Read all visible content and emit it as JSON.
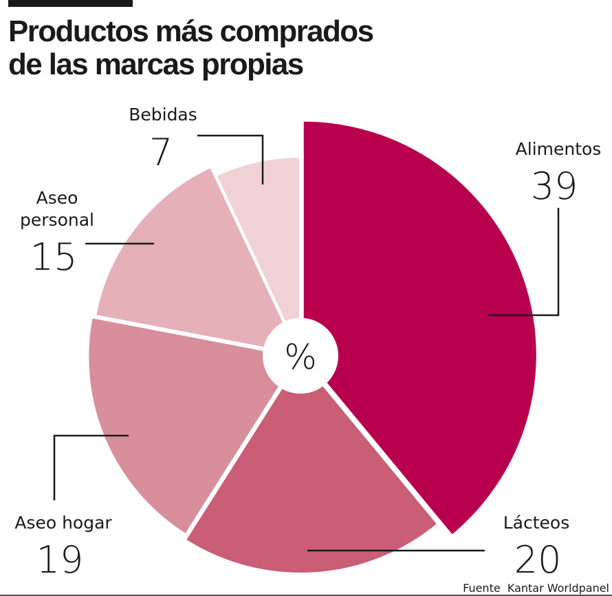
{
  "chart_data": {
    "type": "pie",
    "title": "Productos más comprados de las marcas propias",
    "title_lines": [
      "Productos más comprados",
      "de las marcas propias"
    ],
    "center_label": "%",
    "unit": "%",
    "slices": [
      {
        "label": "Alimentos",
        "label_lines": [
          "Alimentos"
        ],
        "value": 39,
        "color": "#b8004f"
      },
      {
        "label": "Lácteos",
        "label_lines": [
          "Lácteos"
        ],
        "value": 20,
        "color": "#c95e76"
      },
      {
        "label": "Aseo hogar",
        "label_lines": [
          "Aseo hogar"
        ],
        "value": 19,
        "color": "#d88e9b"
      },
      {
        "label": "Aseo personal",
        "label_lines": [
          "Aseo",
          "personal"
        ],
        "value": 15,
        "color": "#e5b0b8"
      },
      {
        "label": "Bebidas",
        "label_lines": [
          "Bebidas"
        ],
        "value": 7,
        "color": "#f0d2d6"
      }
    ],
    "source": "Fuente  Kantar Worldpanel"
  }
}
